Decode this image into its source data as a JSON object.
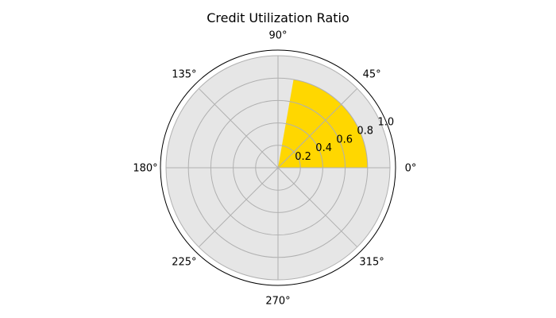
{
  "chart_data": {
    "type": "polar-bar",
    "title": "Credit Utilization Ratio",
    "value": 0.8,
    "theta_range_deg": [
      0,
      80
    ],
    "rmax": 1.0,
    "radial_ticks": [
      "0.2",
      "0.4",
      "0.6",
      "0.8",
      "1.0"
    ],
    "radial_tick_values": [
      0.2,
      0.4,
      0.6,
      0.8,
      1.0
    ],
    "angle_ticks": [
      "0°",
      "45°",
      "90°",
      "135°",
      "180°",
      "225°",
      "270°",
      "315°"
    ],
    "angle_tick_values_deg": [
      0,
      45,
      90,
      135,
      180,
      225,
      270,
      315
    ],
    "grid": true
  },
  "colors": {
    "fill": "#FFD700",
    "background": "#E6E6E6",
    "grid": "#B0B0B0",
    "frame": "#000000"
  }
}
